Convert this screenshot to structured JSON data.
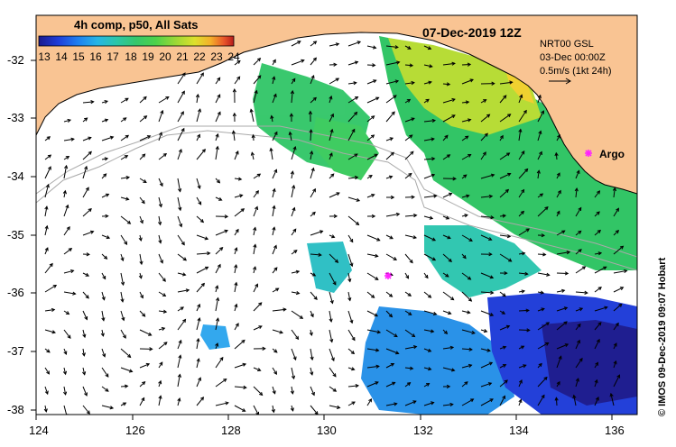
{
  "title": {
    "date": "07-Dec-2019 12Z",
    "product": "4h comp, p50, All Sats"
  },
  "colorbar": {
    "labels": [
      "13",
      "14",
      "15",
      "16",
      "17",
      "18",
      "19",
      "20",
      "21",
      "22",
      "23",
      "24"
    ],
    "min": 13,
    "max": 24,
    "colors": [
      "#1b1a8e",
      "#1f3dd9",
      "#1f7ff0",
      "#27b5e6",
      "#2cc6a7",
      "#36c76b",
      "#4dd24a",
      "#9ad836",
      "#dde02c",
      "#f4b02a",
      "#e8562a",
      "#b71c1c"
    ]
  },
  "reference": {
    "line1": "NRT00 GSL",
    "line2": "03-Dec 00:00Z",
    "line3": "0.5m/s (1kt 24h)"
  },
  "markers": {
    "argo_label": "Argo",
    "argo_lon": 135.5,
    "argo_lat": -33.6,
    "unlabelled_lon": 131.4,
    "unlabelled_lat": -35.7,
    "marker_color": "#ff22ff"
  },
  "axes": {
    "lon_ticks": [
      "124",
      "126",
      "128",
      "130",
      "132",
      "134",
      "136"
    ],
    "lat_ticks": [
      "-32",
      "-33",
      "-34",
      "-35",
      "-36",
      "-37",
      "-38"
    ],
    "lon_range": [
      124,
      136.5
    ],
    "lat_range": [
      -38.1,
      -31.4
    ]
  },
  "credit": "© IMOS 09-Dec-2019 09:07 Hobart",
  "colors": {
    "land": "#f9c493",
    "ocean_nodata": "#ffffff",
    "bathymetry": "#a9a9a9"
  }
}
